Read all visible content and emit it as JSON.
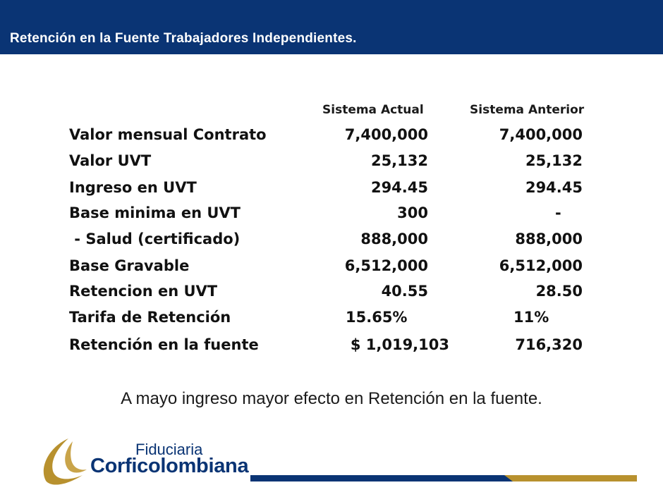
{
  "header": {
    "title": "Retención en la Fuente Trabajadores Independientes."
  },
  "table": {
    "columns": [
      "Sistema Actual",
      "Sistema Anterior"
    ],
    "rows": [
      {
        "label": "Valor mensual Contrato",
        "actual": "7,400,000",
        "anterior": "7,400,000"
      },
      {
        "label": "Valor UVT",
        "actual": "25,132",
        "anterior": "25,132"
      },
      {
        "label": "Ingreso en UVT",
        "actual": "294.45",
        "anterior": "294.45"
      },
      {
        "label": "Base minima en UVT",
        "actual": "300",
        "anterior": "-"
      },
      {
        "label": " - Salud (certificado)",
        "actual": "888,000",
        "anterior": "888,000"
      },
      {
        "label": "Base Gravable",
        "actual": "6,512,000",
        "anterior": "6,512,000"
      },
      {
        "label": "Retencion en UVT",
        "actual": "40.55",
        "anterior": "28.50"
      },
      {
        "label": "Tarifa de Retención",
        "actual": "15.65%",
        "anterior": "11%"
      },
      {
        "label": "Retención en la fuente",
        "actual": "$ 1,019,103",
        "anterior": "716,320"
      }
    ]
  },
  "footnote": "A mayo ingreso mayor efecto en Retención en la fuente.",
  "logo": {
    "line1": "Fiduciaria",
    "line2": "Corficolombiana"
  },
  "colors": {
    "navy": "#0a3474",
    "gold": "#b8912e"
  }
}
